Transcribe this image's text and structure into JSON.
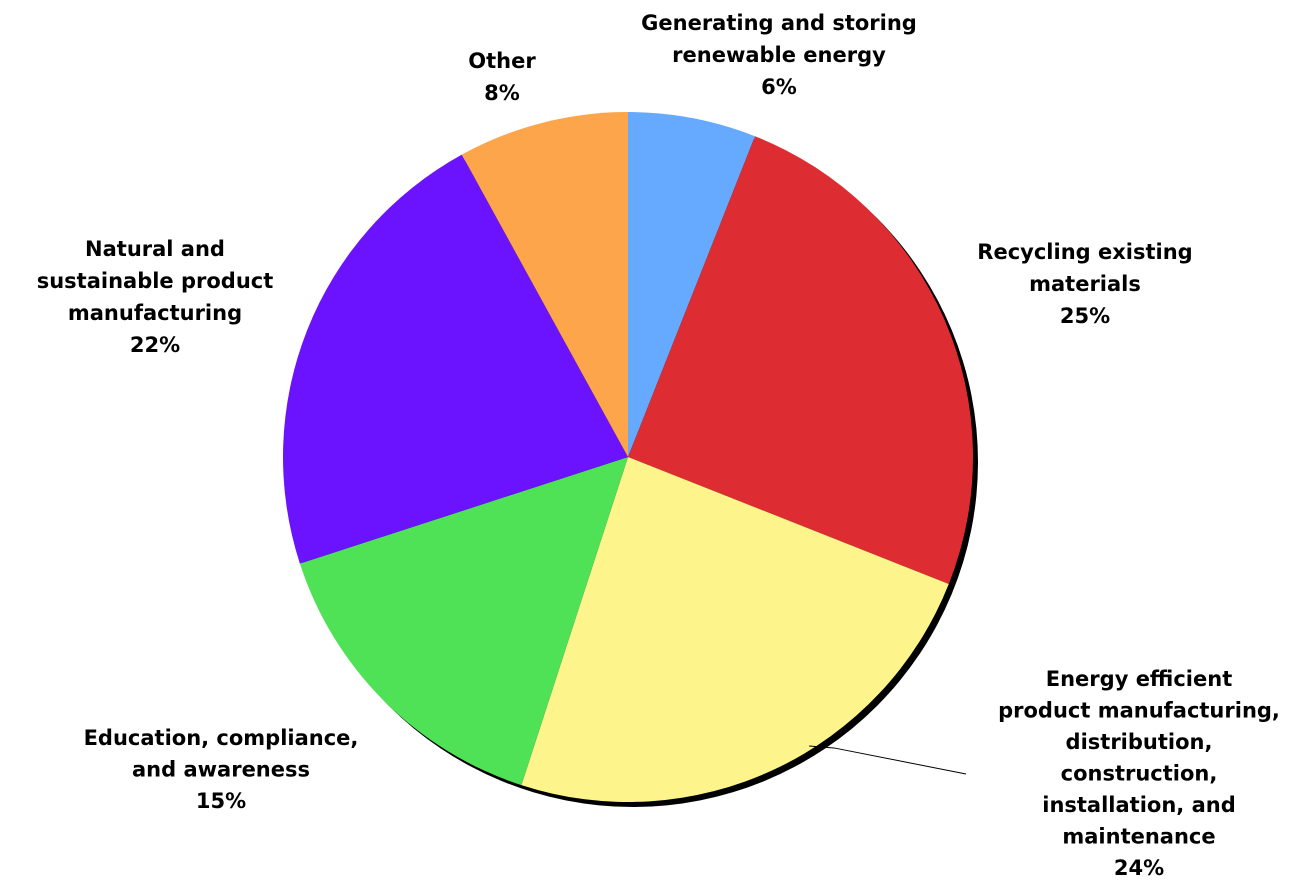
{
  "chart_data": {
    "type": "pie",
    "title": "",
    "slices": [
      {
        "label": "Generating and storing renewable energy",
        "label_lines": [
          "Generating and storing",
          "renewable energy"
        ],
        "value": 6,
        "value_label": "6%",
        "color": "#66aaff"
      },
      {
        "label": "Recycling existing materials",
        "label_lines": [
          "Recycling existing",
          "materials"
        ],
        "value": 25,
        "value_label": "25%",
        "color": "#dd2d33"
      },
      {
        "label": "Energy efficient product manufacturing, distribution, construction, installation, and maintenance",
        "label_lines": [
          "Energy efficient",
          "product manufacturing,",
          "distribution,",
          "construction,",
          "installation, and",
          "maintenance"
        ],
        "value": 24,
        "value_label": "24%",
        "color": "#fdf48c"
      },
      {
        "label": "Education, compliance, and awareness",
        "label_lines": [
          "Education, compliance,",
          "and awareness"
        ],
        "value": 15,
        "value_label": "15%",
        "color": "#4fe257"
      },
      {
        "label": "Natural and sustainable product manufacturing",
        "label_lines": [
          "Natural and",
          "sustainable product",
          "manufacturing"
        ],
        "value": 22,
        "value_label": "22%",
        "color": "#6b12fe"
      },
      {
        "label": "Other",
        "label_lines": [
          "Other"
        ],
        "value": 8,
        "value_label": "8%",
        "color": "#fca54a"
      }
    ],
    "start_position": "top",
    "direction": "clockwise",
    "legend": "none",
    "shadow": true
  }
}
